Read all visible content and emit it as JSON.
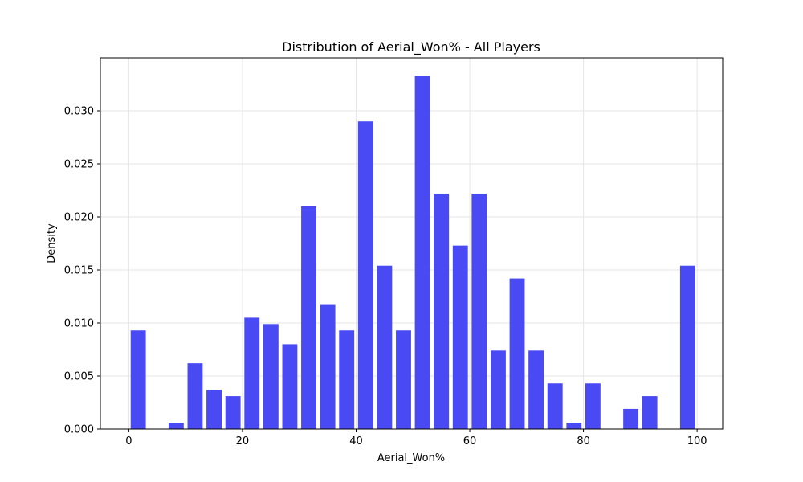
{
  "chart_data": {
    "type": "bar",
    "title": "Distribution of Aerial_Won% - All Players",
    "xlabel": "Aerial_Won%",
    "ylabel": "Density",
    "xlim": [
      -5,
      104.5
    ],
    "ylim": [
      0,
      0.035
    ],
    "xticks": [
      0,
      20,
      40,
      60,
      80,
      100
    ],
    "xtick_labels": [
      "0",
      "20",
      "40",
      "60",
      "80",
      "100"
    ],
    "yticks": [
      0,
      0.005,
      0.01,
      0.015,
      0.02,
      0.025,
      0.03
    ],
    "ytick_labels": [
      "0.000",
      "0.005",
      "0.010",
      "0.015",
      "0.020",
      "0.025",
      "0.030"
    ],
    "grid": true,
    "bar_color": "#4a4af4",
    "bins": [
      {
        "x0": 0.0,
        "x1": 3.33,
        "value": 0.0093
      },
      {
        "x0": 3.33,
        "x1": 6.67,
        "value": 0
      },
      {
        "x0": 6.67,
        "x1": 10.0,
        "value": 0.0006
      },
      {
        "x0": 10.0,
        "x1": 13.33,
        "value": 0.0062
      },
      {
        "x0": 13.33,
        "x1": 16.67,
        "value": 0.0037
      },
      {
        "x0": 16.67,
        "x1": 20.0,
        "value": 0.0031
      },
      {
        "x0": 20.0,
        "x1": 23.33,
        "value": 0.0105
      },
      {
        "x0": 23.33,
        "x1": 26.67,
        "value": 0.0099
      },
      {
        "x0": 26.67,
        "x1": 30.0,
        "value": 0.008
      },
      {
        "x0": 30.0,
        "x1": 33.33,
        "value": 0.021
      },
      {
        "x0": 33.33,
        "x1": 36.67,
        "value": 0.0117
      },
      {
        "x0": 36.67,
        "x1": 40.0,
        "value": 0.0093
      },
      {
        "x0": 40.0,
        "x1": 43.33,
        "value": 0.029
      },
      {
        "x0": 43.33,
        "x1": 46.67,
        "value": 0.0154
      },
      {
        "x0": 46.67,
        "x1": 50.0,
        "value": 0.0093
      },
      {
        "x0": 50.0,
        "x1": 53.33,
        "value": 0.0333
      },
      {
        "x0": 53.33,
        "x1": 56.67,
        "value": 0.0222
      },
      {
        "x0": 56.67,
        "x1": 60.0,
        "value": 0.0173
      },
      {
        "x0": 60.0,
        "x1": 63.33,
        "value": 0.0222
      },
      {
        "x0": 63.33,
        "x1": 66.67,
        "value": 0.0074
      },
      {
        "x0": 66.67,
        "x1": 70.0,
        "value": 0.0142
      },
      {
        "x0": 70.0,
        "x1": 73.33,
        "value": 0.0074
      },
      {
        "x0": 73.33,
        "x1": 76.67,
        "value": 0.0043
      },
      {
        "x0": 76.67,
        "x1": 80.0,
        "value": 0.0006
      },
      {
        "x0": 80.0,
        "x1": 83.33,
        "value": 0.0043
      },
      {
        "x0": 83.33,
        "x1": 86.67,
        "value": 0
      },
      {
        "x0": 86.67,
        "x1": 90.0,
        "value": 0.0019
      },
      {
        "x0": 90.0,
        "x1": 93.33,
        "value": 0.0031
      },
      {
        "x0": 93.33,
        "x1": 96.67,
        "value": 0
      },
      {
        "x0": 96.67,
        "x1": 100.0,
        "value": 0.0154
      }
    ]
  }
}
